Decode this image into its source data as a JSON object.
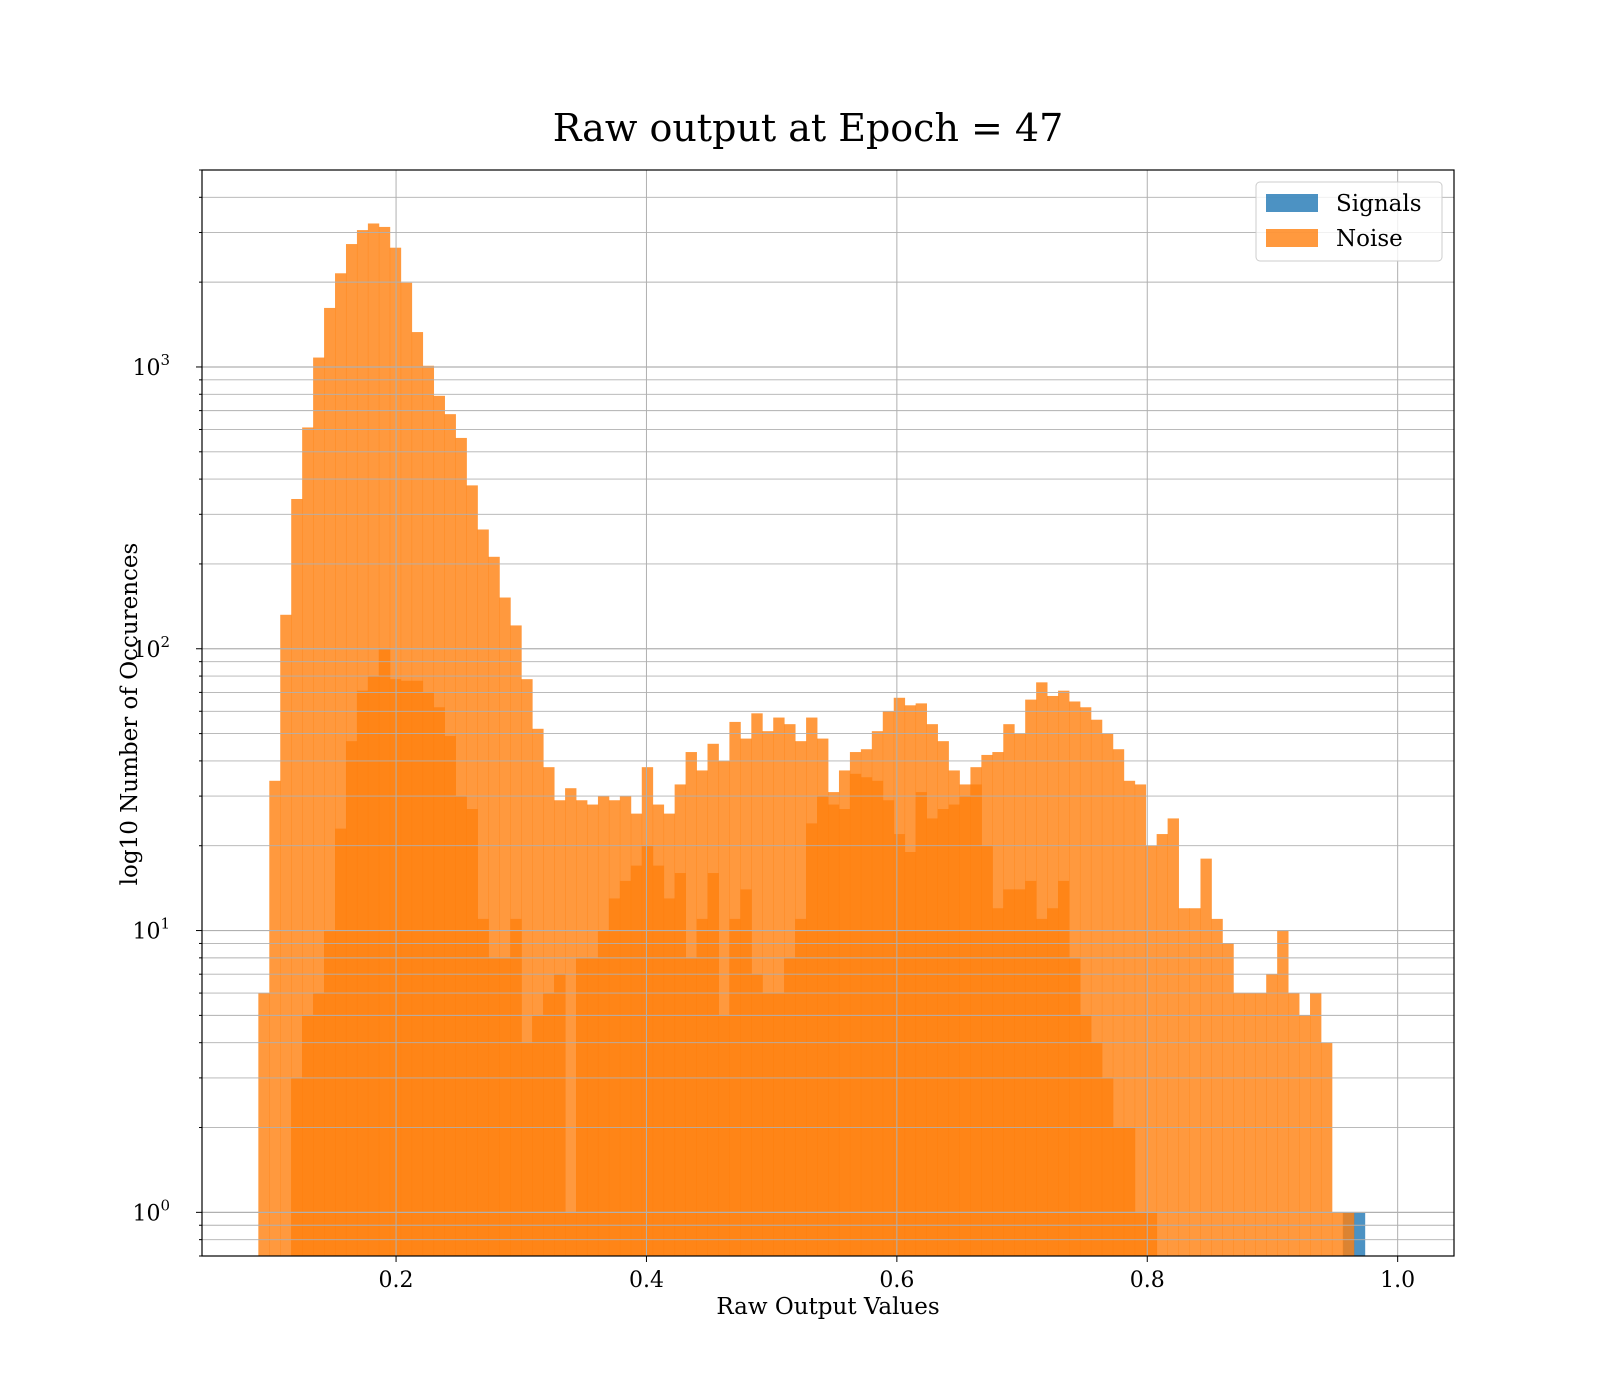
{
  "chart_data": {
    "type": "histogram",
    "title": "Raw output at Epoch = 47",
    "xlabel": "Raw Output Values",
    "ylabel": "log10 Number of Occurences",
    "yscale": "log",
    "xlim": [
      0.045,
      1.045
    ],
    "ylim": [
      0.7,
      5000
    ],
    "grid": true,
    "legend_position": "upper right",
    "x_ticks": [
      "0.2",
      "0.4",
      "0.6",
      "0.8",
      "1.0"
    ],
    "y_ticks": [
      {
        "base": "10",
        "exp": "0"
      },
      {
        "base": "10",
        "exp": "1"
      },
      {
        "base": "10",
        "exp": "2"
      },
      {
        "base": "10",
        "exp": "3"
      }
    ],
    "bin_start": 0.09,
    "bin_width": 0.00875,
    "series": [
      {
        "name": "Signals",
        "color": "#1f77b4",
        "opacity": 0.8,
        "values": [
          0,
          0,
          0,
          0,
          0,
          0,
          0,
          0,
          0,
          0,
          0,
          0,
          0,
          0,
          0,
          0,
          0,
          0,
          0,
          0,
          0,
          0,
          0,
          0,
          0,
          0,
          0,
          0,
          0,
          0,
          0,
          0,
          0,
          0,
          0,
          0,
          0,
          0,
          0,
          0,
          0,
          0,
          0,
          0,
          0,
          0,
          0,
          0,
          0,
          0,
          0,
          0,
          0,
          0,
          0,
          0,
          0,
          0,
          0,
          0,
          0,
          0,
          0,
          0,
          0,
          0,
          0,
          0,
          0,
          0,
          0,
          0,
          0,
          0,
          0,
          0,
          0,
          0,
          0,
          0,
          0,
          0,
          0,
          0,
          0,
          0,
          0,
          0,
          0,
          0,
          0,
          0,
          0,
          0,
          0,
          0,
          0,
          0,
          0,
          1,
          1
        ]
      },
      {
        "name": "Noise",
        "color": "#ff7f0e",
        "opacity": 0.8,
        "values": [
          6,
          34,
          132,
          340,
          610,
          1080,
          1620,
          2150,
          2730,
          3060,
          3230,
          3140,
          2650,
          1990,
          1330,
          1010,
          790,
          680,
          560,
          380,
          265,
          212,
          152,
          121,
          78,
          52,
          38,
          29,
          32,
          29,
          28,
          30,
          29,
          30,
          26,
          38,
          28,
          26,
          33,
          43,
          37,
          46,
          40,
          55,
          48,
          59,
          51,
          57,
          54,
          47,
          57,
          48,
          28,
          27,
          36,
          35,
          34,
          29,
          22,
          19,
          31,
          25,
          27,
          28,
          30,
          38,
          42,
          43,
          54,
          50,
          66,
          76,
          68,
          71,
          65,
          62,
          56,
          50,
          44,
          34,
          33,
          20,
          22,
          25,
          12,
          12,
          18,
          11,
          9,
          6,
          6,
          6,
          7,
          10,
          6,
          5,
          6,
          4,
          1,
          1,
          0,
          0
        ]
      },
      {
        "name": "",
        "color": "#ff7f0e",
        "opacity": 0.8,
        "values": [
          0,
          0,
          0,
          3,
          5,
          6,
          10,
          23,
          47,
          71,
          80,
          100,
          78,
          77,
          77,
          70,
          62,
          49,
          30,
          27,
          11,
          8,
          8,
          11,
          4,
          5,
          6,
          7,
          1,
          8,
          8,
          10,
          13,
          15,
          17,
          20,
          17,
          13,
          16,
          8,
          11,
          16,
          5,
          11,
          14,
          7,
          6,
          6,
          8,
          11,
          24,
          30,
          31,
          37,
          43,
          44,
          51,
          60,
          67,
          63,
          64,
          54,
          47,
          37,
          33,
          33,
          20,
          12,
          14,
          14,
          15,
          11,
          12,
          15,
          8,
          5,
          4,
          3,
          2,
          2,
          1,
          1,
          0,
          0
        ]
      }
    ]
  }
}
